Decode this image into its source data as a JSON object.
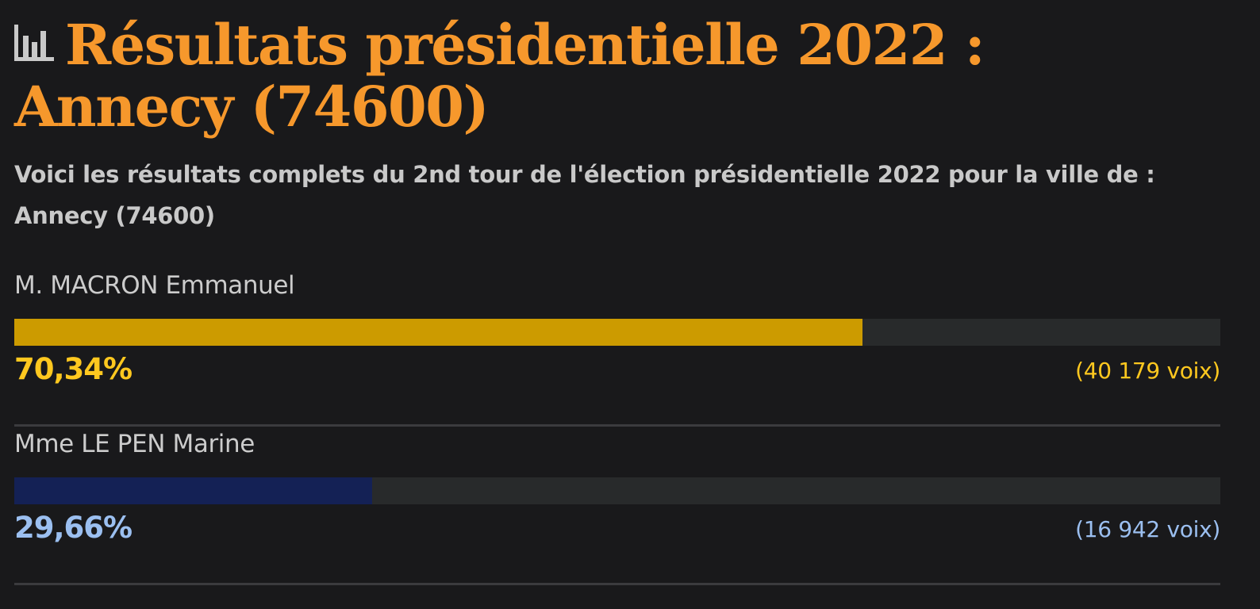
{
  "header": {
    "title": "Résultats présidentielle 2022 : Annecy (74600)",
    "title_icon": "bar-chart-icon",
    "subtitle": "Voici les résultats complets du 2nd tour de l'élection présidentielle 2022 pour la ville de : Annecy (74600)"
  },
  "colors": {
    "title": "#f6982c",
    "background": "#19191b",
    "track": "#282a2b"
  },
  "chart_data": {
    "type": "bar",
    "orientation": "horizontal",
    "ylim": [
      0,
      100
    ],
    "categories": [
      "M. MACRON Emmanuel",
      "Mme LE PEN Marine"
    ],
    "values": [
      70.34,
      29.66
    ],
    "series": [
      {
        "values": [
          70.34,
          29.66
        ]
      }
    ],
    "items": [
      {
        "name": "M. MACRON Emmanuel",
        "value": 70.34,
        "percent_label": "70,34%",
        "votes_label": "(40 179 voix)",
        "bar_color": "#cc9b00",
        "text_color": "#ffc81f"
      },
      {
        "name": "Mme LE PEN Marine",
        "value": 29.66,
        "percent_label": "29,66%",
        "votes_label": "(16 942 voix)",
        "bar_color": "#142155",
        "text_color": "#9bbff0"
      }
    ]
  }
}
